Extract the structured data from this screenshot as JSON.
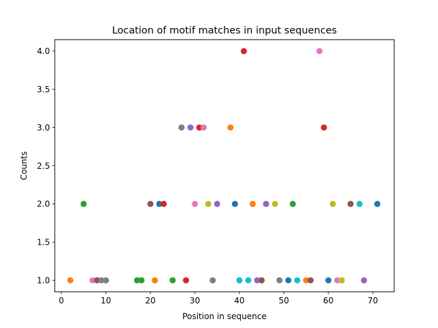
{
  "chart_data": {
    "type": "scatter",
    "title": "Location of motif matches in input sequences",
    "xlabel": "Position in sequence",
    "ylabel": "Counts",
    "xlim": [
      -1.5,
      74.8
    ],
    "ylim": [
      0.85,
      4.15
    ],
    "xticks": [
      0,
      10,
      20,
      30,
      40,
      50,
      60,
      70
    ],
    "yticks": [
      1.0,
      1.5,
      2.0,
      2.5,
      3.0,
      3.5,
      4.0
    ],
    "xtick_labels": [
      "0",
      "10",
      "20",
      "30",
      "40",
      "50",
      "60",
      "70"
    ],
    "ytick_labels": [
      "1.0",
      "1.5",
      "2.0",
      "2.5",
      "3.0",
      "3.5",
      "4.0"
    ],
    "grid": false,
    "legend": "none",
    "palette": [
      "#1f77b4",
      "#ff7f0e",
      "#2ca02c",
      "#d62728",
      "#9467bd",
      "#8c564b",
      "#e377c2",
      "#7f7f7f",
      "#bcbd22",
      "#17becf"
    ],
    "points": [
      {
        "x": 2,
        "y": 1,
        "color": "#ff7f0e"
      },
      {
        "x": 5,
        "y": 2,
        "color": "#2ca02c"
      },
      {
        "x": 7,
        "y": 1,
        "color": "#e377c2"
      },
      {
        "x": 8,
        "y": 1,
        "color": "#8c564b"
      },
      {
        "x": 9,
        "y": 1,
        "color": "#7f7f7f"
      },
      {
        "x": 10,
        "y": 1,
        "color": "#7f7f7f"
      },
      {
        "x": 17,
        "y": 1,
        "color": "#2ca02c"
      },
      {
        "x": 18,
        "y": 1,
        "color": "#2ca02c"
      },
      {
        "x": 20,
        "y": 2,
        "color": "#8c564b"
      },
      {
        "x": 21,
        "y": 1,
        "color": "#ff7f0e"
      },
      {
        "x": 22,
        "y": 2,
        "color": "#1f77b4"
      },
      {
        "x": 23,
        "y": 2,
        "color": "#d62728"
      },
      {
        "x": 25,
        "y": 1,
        "color": "#2ca02c"
      },
      {
        "x": 27,
        "y": 3,
        "color": "#7f7f7f"
      },
      {
        "x": 28,
        "y": 1,
        "color": "#d62728"
      },
      {
        "x": 29,
        "y": 3,
        "color": "#9467bd"
      },
      {
        "x": 30,
        "y": 2,
        "color": "#e377c2"
      },
      {
        "x": 31,
        "y": 3,
        "color": "#d62728"
      },
      {
        "x": 32,
        "y": 3,
        "color": "#e377c2"
      },
      {
        "x": 33,
        "y": 2,
        "color": "#bcbd22"
      },
      {
        "x": 34,
        "y": 1,
        "color": "#7f7f7f"
      },
      {
        "x": 35,
        "y": 2,
        "color": "#9467bd"
      },
      {
        "x": 38,
        "y": 3,
        "color": "#ff7f0e"
      },
      {
        "x": 39,
        "y": 2,
        "color": "#1f77b4"
      },
      {
        "x": 40,
        "y": 1,
        "color": "#17becf"
      },
      {
        "x": 41,
        "y": 4,
        "color": "#d62728"
      },
      {
        "x": 42,
        "y": 1,
        "color": "#17becf"
      },
      {
        "x": 43,
        "y": 2,
        "color": "#ff7f0e"
      },
      {
        "x": 44,
        "y": 1,
        "color": "#9467bd"
      },
      {
        "x": 45,
        "y": 1,
        "color": "#8c564b"
      },
      {
        "x": 46,
        "y": 2,
        "color": "#9467bd"
      },
      {
        "x": 48,
        "y": 2,
        "color": "#bcbd22"
      },
      {
        "x": 49,
        "y": 1,
        "color": "#7f7f7f"
      },
      {
        "x": 51,
        "y": 1,
        "color": "#1f77b4"
      },
      {
        "x": 52,
        "y": 2,
        "color": "#2ca02c"
      },
      {
        "x": 53,
        "y": 1,
        "color": "#17becf"
      },
      {
        "x": 55,
        "y": 1,
        "color": "#ff7f0e"
      },
      {
        "x": 56,
        "y": 1,
        "color": "#8c564b"
      },
      {
        "x": 58,
        "y": 4,
        "color": "#e377c2"
      },
      {
        "x": 59,
        "y": 3,
        "color": "#d62728"
      },
      {
        "x": 60,
        "y": 1,
        "color": "#1f77b4"
      },
      {
        "x": 61,
        "y": 2,
        "color": "#bcbd22"
      },
      {
        "x": 62,
        "y": 1,
        "color": "#e377c2"
      },
      {
        "x": 63,
        "y": 1,
        "color": "#bcbd22"
      },
      {
        "x": 65,
        "y": 2,
        "color": "#8c564b"
      },
      {
        "x": 67,
        "y": 2,
        "color": "#17becf"
      },
      {
        "x": 68,
        "y": 1,
        "color": "#9467bd"
      },
      {
        "x": 71,
        "y": 2,
        "color": "#1f77b4"
      }
    ]
  }
}
